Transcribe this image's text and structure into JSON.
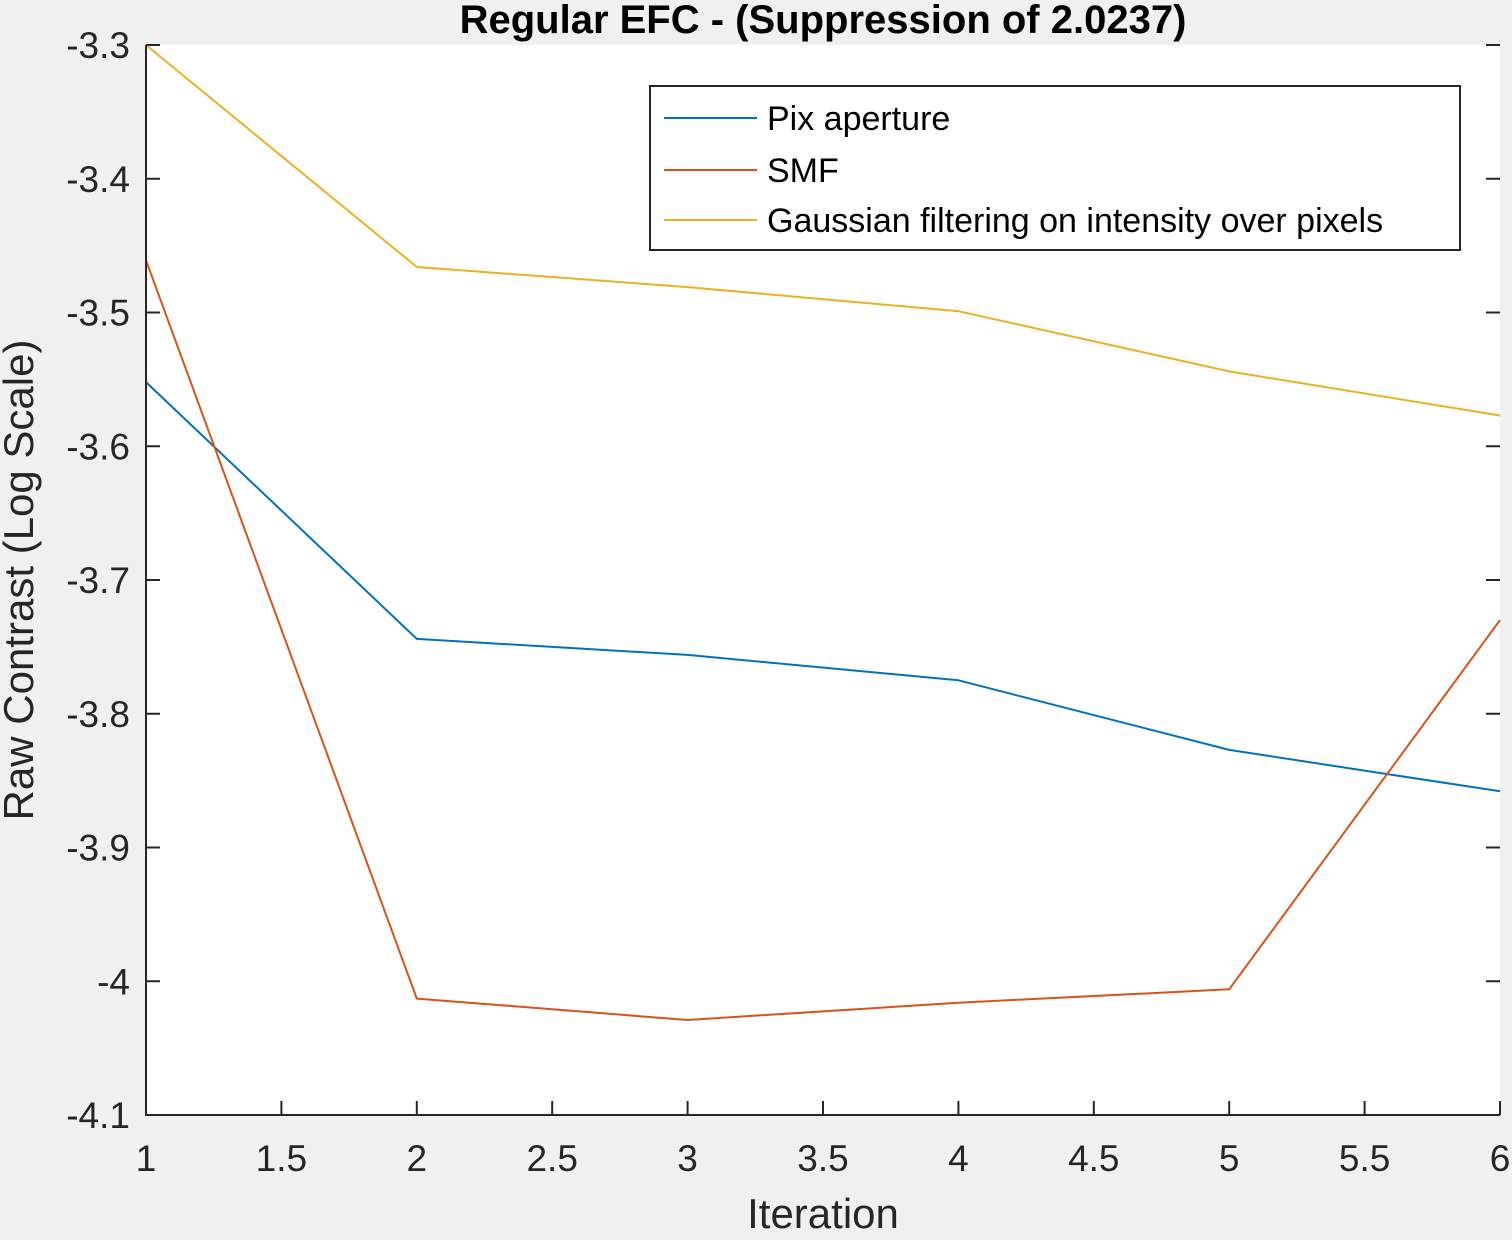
{
  "chart_data": {
    "type": "line",
    "title": "Regular EFC -  (Suppression of 2.0237)",
    "xlabel": "Iteration",
    "ylabel": "Raw Contrast (Log Scale)",
    "xlim": [
      1,
      6
    ],
    "ylim": [
      -4.1,
      -3.3
    ],
    "xticks": [
      1,
      1.5,
      2,
      2.5,
      3,
      3.5,
      4,
      4.5,
      5,
      5.5,
      6
    ],
    "xtick_labels": [
      "1",
      "1.5",
      "2",
      "2.5",
      "3",
      "3.5",
      "4",
      "4.5",
      "5",
      "5.5",
      "6"
    ],
    "yticks": [
      -3.3,
      -3.4,
      -3.5,
      -3.6,
      -3.7,
      -3.8,
      -3.9,
      -4,
      -4.1
    ],
    "ytick_labels": [
      "-3.3",
      "-3.4",
      "-3.5",
      "-3.6",
      "-3.7",
      "-3.8",
      "-3.9",
      "-4",
      "-4.1"
    ],
    "grid": false,
    "legend_position": "top-right",
    "x": [
      1,
      2,
      3,
      4,
      5,
      6
    ],
    "series": [
      {
        "name": "Pix aperture",
        "color": "#0072BD",
        "values": [
          -3.552,
          -3.744,
          -3.756,
          -3.775,
          -3.827,
          -3.858
        ]
      },
      {
        "name": "SMF",
        "color": "#D95319",
        "values": [
          -3.461,
          -4.013,
          -4.029,
          -4.016,
          -4.006,
          -3.73
        ]
      },
      {
        "name": "Gaussian filtering on intensity over pixels",
        "color": "#EDB120",
        "values": [
          -3.3,
          -3.466,
          -3.481,
          -3.499,
          -3.544,
          -3.577
        ]
      }
    ]
  }
}
